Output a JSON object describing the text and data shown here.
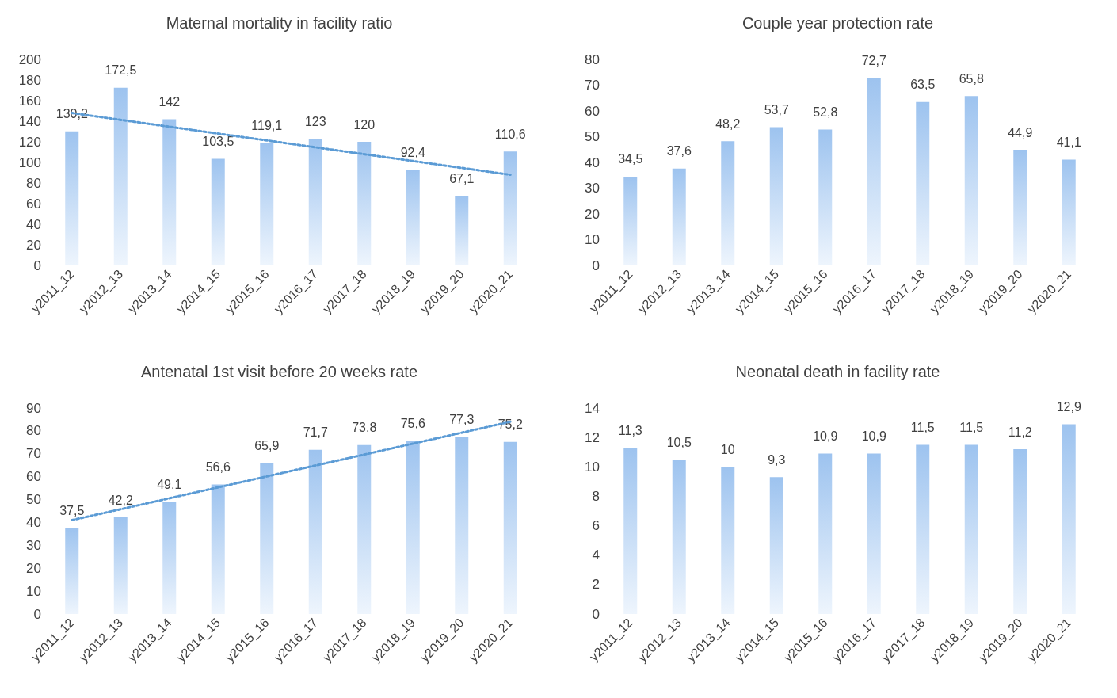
{
  "chart_data": [
    {
      "type": "bar",
      "title": "Maternal mortality in facility ratio",
      "categories": [
        "y2011_12",
        "y2012_13",
        "y2013_14",
        "y2014_15",
        "y2015_16",
        "y2016_17",
        "y2017_18",
        "y2018_19",
        "y2019_20",
        "y2020_21"
      ],
      "ylim": [
        0,
        200
      ],
      "yticks": [
        0,
        20,
        40,
        60,
        80,
        100,
        120,
        140,
        160,
        180,
        200
      ],
      "grid": false,
      "series": [
        {
          "color": "#9dc3ef",
          "values": [
            130.2,
            172.5,
            142,
            103.5,
            119.1,
            123,
            120,
            92.4,
            67.1,
            110.6
          ],
          "value_labels": [
            "130,2",
            "172,5",
            "142",
            "103,5",
            "119,1",
            "123",
            "120",
            "92,4",
            "67,1",
            "110,6"
          ]
        },
        {
          "type": "line",
          "color": "#5b9bd5",
          "x": [
            "y2011_12",
            "y2020_21"
          ],
          "values": [
            148,
            88
          ],
          "line_style": "dotted",
          "marker": "none"
        }
      ]
    },
    {
      "type": "bar",
      "title": "Couple year protection rate",
      "categories": [
        "y2011_12",
        "y2012_13",
        "y2013_14",
        "y2014_15",
        "y2015_16",
        "y2016_17",
        "y2017_18",
        "y2018_19",
        "y2019_20",
        "y2020_21"
      ],
      "ylim": [
        0,
        80
      ],
      "yticks": [
        0,
        10,
        20,
        30,
        40,
        50,
        60,
        70,
        80
      ],
      "grid": false,
      "series": [
        {
          "color": "#9dc3ef",
          "values": [
            34.5,
            37.6,
            48.2,
            53.7,
            52.8,
            72.7,
            63.5,
            65.8,
            44.9,
            41.1
          ],
          "value_labels": [
            "34,5",
            "37,6",
            "48,2",
            "53,7",
            "52,8",
            "72,7",
            "63,5",
            "65,8",
            "44,9",
            "41,1"
          ]
        }
      ]
    },
    {
      "type": "bar",
      "title": "Antenatal 1st visit before 20 weeks rate",
      "categories": [
        "y2011_12",
        "y2012_13",
        "y2013_14",
        "y2014_15",
        "y2015_16",
        "y2016_17",
        "y2017_18",
        "y2018_19",
        "y2019_20",
        "y2020_21"
      ],
      "ylim": [
        0,
        90
      ],
      "yticks": [
        0,
        10,
        20,
        30,
        40,
        50,
        60,
        70,
        80,
        90
      ],
      "grid": false,
      "series": [
        {
          "color": "#9dc3ef",
          "values": [
            37.5,
            42.2,
            49.1,
            56.6,
            65.9,
            71.7,
            73.8,
            75.6,
            77.3,
            75.2
          ],
          "value_labels": [
            "37,5",
            "42,2",
            "49,1",
            "56,6",
            "65,9",
            "71,7",
            "73,8",
            "75,6",
            "77,3",
            "75,2"
          ]
        },
        {
          "type": "line",
          "color": "#5b9bd5",
          "x": [
            "y2011_12",
            "y2020_21"
          ],
          "values": [
            41,
            84
          ],
          "line_style": "dotted",
          "marker": "none"
        }
      ]
    },
    {
      "type": "bar",
      "title": "Neonatal death in facility rate",
      "categories": [
        "y2011_12",
        "y2012_13",
        "y2013_14",
        "y2014_15",
        "y2015_16",
        "y2016_17",
        "y2017_18",
        "y2018_19",
        "y2019_20",
        "y2020_21"
      ],
      "ylim": [
        0,
        14
      ],
      "yticks": [
        0,
        2,
        4,
        6,
        8,
        10,
        12,
        14
      ],
      "grid": false,
      "series": [
        {
          "color": "#9dc3ef",
          "values": [
            11.3,
            10.5,
            10,
            9.3,
            10.9,
            10.9,
            11.5,
            11.5,
            11.2,
            12.9
          ],
          "value_labels": [
            "11,3",
            "10,5",
            "10",
            "9,3",
            "10,9",
            "10,9",
            "11,5",
            "11,5",
            "11,2",
            "12,9"
          ]
        }
      ]
    }
  ]
}
